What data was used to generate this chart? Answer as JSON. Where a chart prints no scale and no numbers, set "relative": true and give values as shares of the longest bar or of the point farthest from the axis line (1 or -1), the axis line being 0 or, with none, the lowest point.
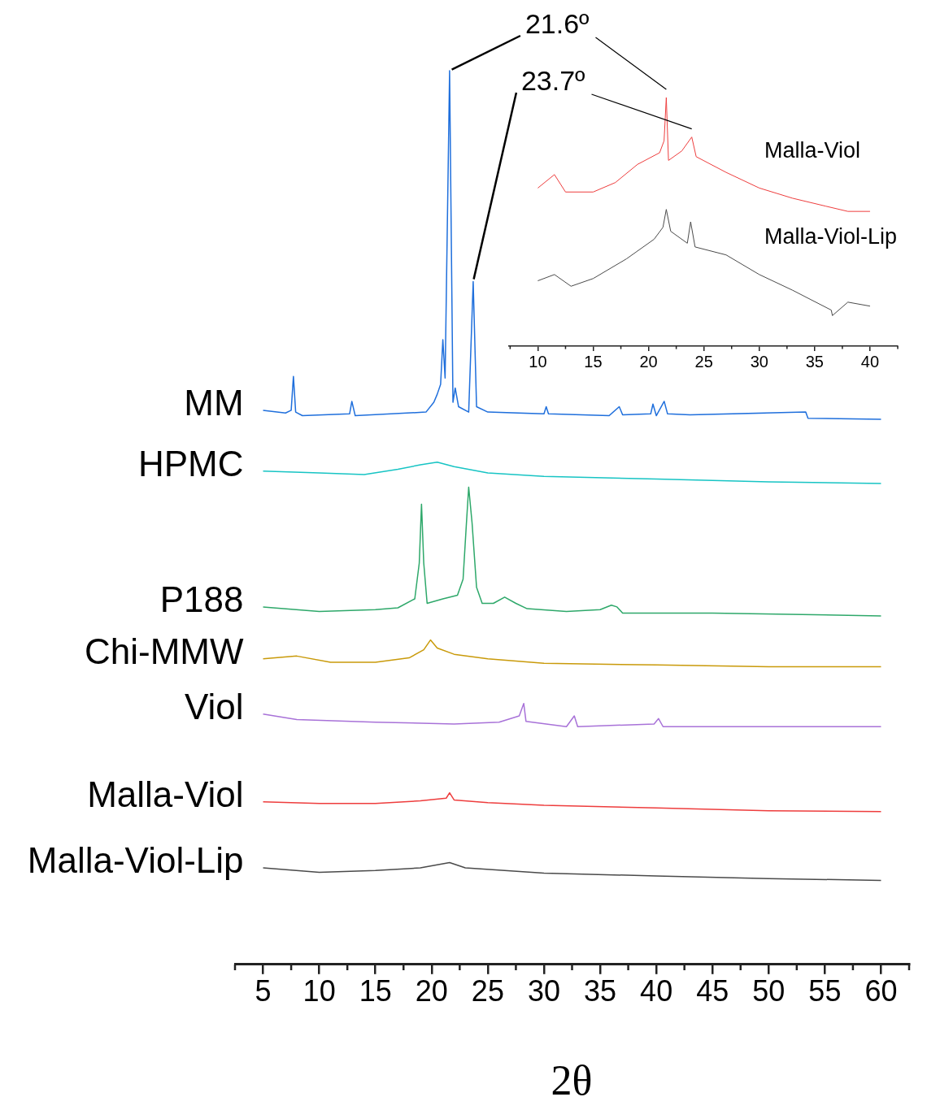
{
  "chart_data": [
    {
      "type": "line",
      "relative": true,
      "xlabel": "2θ",
      "xlim": [
        2.5,
        62.5
      ],
      "xticks": [
        {
          "value": 2.5,
          "label": null
        },
        5,
        {
          "value": 7.5,
          "label": null
        },
        10,
        {
          "value": 12.5,
          "label": null
        },
        15,
        {
          "value": 17.5,
          "label": null
        },
        20,
        {
          "value": 22.5,
          "label": null
        },
        25,
        {
          "value": 27.5,
          "label": null
        },
        30,
        {
          "value": 32.5,
          "label": null
        },
        35,
        {
          "value": 37.5,
          "label": null
        },
        40,
        {
          "value": 42.5,
          "label": null
        },
        45,
        {
          "value": 47.5,
          "label": null
        },
        50,
        {
          "value": 52.5,
          "label": null
        },
        55,
        {
          "value": 57.5,
          "label": null
        },
        60,
        {
          "value": 62.5,
          "label": null
        }
      ],
      "grid": false,
      "legend": false,
      "marker": "none",
      "line_style": "solid",
      "annotations": [
        {
          "text": "21.6º",
          "x": 21.6,
          "y": 1.0
        },
        {
          "text": "23.7º",
          "x": 23.7,
          "y": 0.764
        }
      ],
      "series": [
        {
          "name": "MM",
          "color": "#1f6fdc",
          "x": [
            5,
            7,
            7.5,
            7.7,
            7.9,
            8.5,
            12.7,
            12.9,
            13.2,
            19.5,
            20.2,
            20.5,
            20.8,
            21.0,
            21.2,
            21.6,
            21.9,
            22.1,
            22.4,
            23.3,
            23.7,
            24.0,
            25,
            30,
            30.2,
            30.4,
            35.8,
            36.7,
            37.0,
            39.5,
            39.7,
            40.0,
            40.7,
            41,
            43,
            53.3,
            53.5,
            60
          ],
          "values": [
            0.62,
            0.617,
            0.62,
            0.658,
            0.618,
            0.614,
            0.616,
            0.63,
            0.614,
            0.618,
            0.629,
            0.638,
            0.649,
            0.699,
            0.656,
            1.0,
            0.629,
            0.645,
            0.624,
            0.618,
            0.764,
            0.624,
            0.618,
            0.616,
            0.624,
            0.616,
            0.614,
            0.624,
            0.615,
            0.616,
            0.627,
            0.614,
            0.63,
            0.616,
            0.615,
            0.618,
            0.611,
            0.61
          ]
        },
        {
          "name": "HPMC",
          "color": "#17c4c4",
          "x": [
            5,
            10,
            14,
            17,
            19,
            20.5,
            22,
            25,
            30,
            40,
            50,
            60
          ],
          "values": [
            0.552,
            0.55,
            0.548,
            0.554,
            0.559,
            0.562,
            0.557,
            0.55,
            0.546,
            0.543,
            0.54,
            0.538
          ]
        },
        {
          "name": "P188",
          "color": "#2ea86a",
          "x": [
            5,
            10,
            15,
            17,
            18.5,
            18.9,
            19.1,
            19.3,
            19.6,
            21,
            22.3,
            22.8,
            23.1,
            23.3,
            23.6,
            24,
            24.5,
            25.5,
            26.5,
            27.5,
            28.5,
            32,
            35,
            36,
            36.5,
            37,
            45,
            60
          ],
          "values": [
            0.4,
            0.395,
            0.397,
            0.399,
            0.409,
            0.449,
            0.515,
            0.449,
            0.404,
            0.409,
            0.413,
            0.431,
            0.494,
            0.534,
            0.494,
            0.422,
            0.404,
            0.404,
            0.411,
            0.404,
            0.398,
            0.395,
            0.397,
            0.402,
            0.4,
            0.393,
            0.393,
            0.39
          ]
        },
        {
          "name": "Chi-MMW",
          "color": "#c99a0a",
          "x": [
            5,
            8,
            11,
            15,
            18,
            19.3,
            19.9,
            20.5,
            22,
            25,
            30,
            40,
            50,
            60
          ],
          "values": [
            0.342,
            0.345,
            0.338,
            0.338,
            0.343,
            0.352,
            0.363,
            0.354,
            0.347,
            0.342,
            0.337,
            0.335,
            0.333,
            0.333
          ]
        },
        {
          "name": "Viol",
          "color": "#a872d8",
          "x": [
            5,
            8,
            15,
            22,
            26,
            27.8,
            28.2,
            28.4,
            32,
            32.7,
            33,
            39.8,
            40.2,
            40.6,
            50,
            60
          ],
          "values": [
            0.28,
            0.274,
            0.271,
            0.269,
            0.271,
            0.278,
            0.292,
            0.272,
            0.266,
            0.278,
            0.266,
            0.269,
            0.275,
            0.266,
            0.266,
            0.266
          ]
        },
        {
          "name": "Malla-Viol",
          "color": "#ee3d3d",
          "x": [
            5,
            10,
            15,
            19,
            21.3,
            21.6,
            22,
            25,
            30,
            40,
            50,
            60
          ],
          "values": [
            0.182,
            0.18,
            0.18,
            0.183,
            0.186,
            0.192,
            0.184,
            0.181,
            0.178,
            0.175,
            0.172,
            0.171
          ]
        },
        {
          "name": "Malla-Viol-Lip",
          "color": "#4a4a4a",
          "x": [
            5,
            10,
            15,
            19,
            21.6,
            23,
            30,
            40,
            50,
            60
          ],
          "values": [
            0.108,
            0.103,
            0.105,
            0.108,
            0.114,
            0.108,
            0.102,
            0.099,
            0.096,
            0.094
          ]
        }
      ]
    },
    {
      "type": "line",
      "relative": true,
      "xlim": [
        7.4,
        42.5
      ],
      "xticks": [
        {
          "value": 7.5,
          "label": null
        },
        10,
        {
          "value": 12.5,
          "label": null
        },
        15,
        {
          "value": 17.5,
          "label": null
        },
        20,
        {
          "value": 22.5,
          "label": null
        },
        25,
        {
          "value": 27.5,
          "label": null
        },
        30,
        {
          "value": 32.5,
          "label": null
        },
        35,
        {
          "value": 37.5,
          "label": null
        },
        40,
        {
          "value": 42.5,
          "label": null
        }
      ],
      "grid": false,
      "legend": false,
      "marker": "none",
      "line_style": "solid",
      "series": [
        {
          "name": "Malla-Viol",
          "color": "#ee3d3d",
          "x": [
            10,
            11.5,
            12.5,
            15,
            17,
            19,
            21,
            21.4,
            21.6,
            21.8,
            23,
            23.9,
            24.3,
            27,
            30,
            33,
            36,
            38,
            40
          ],
          "values": [
            0.636,
            0.69,
            0.62,
            0.62,
            0.658,
            0.731,
            0.778,
            0.826,
            1.0,
            0.747,
            0.785,
            0.841,
            0.762,
            0.699,
            0.636,
            0.595,
            0.563,
            0.542,
            0.542
          ]
        },
        {
          "name": "Malla-Viol-Lip",
          "color": "#4a4a4a",
          "x": [
            10,
            11.5,
            13,
            15,
            18,
            20.5,
            21.3,
            21.6,
            22,
            23.5,
            23.8,
            24.2,
            27,
            30,
            33,
            36.5,
            36.6,
            38,
            40
          ],
          "values": [
            0.263,
            0.288,
            0.241,
            0.272,
            0.351,
            0.43,
            0.478,
            0.55,
            0.462,
            0.414,
            0.5,
            0.399,
            0.367,
            0.288,
            0.225,
            0.145,
            0.123,
            0.177,
            0.161
          ]
        }
      ]
    }
  ]
}
